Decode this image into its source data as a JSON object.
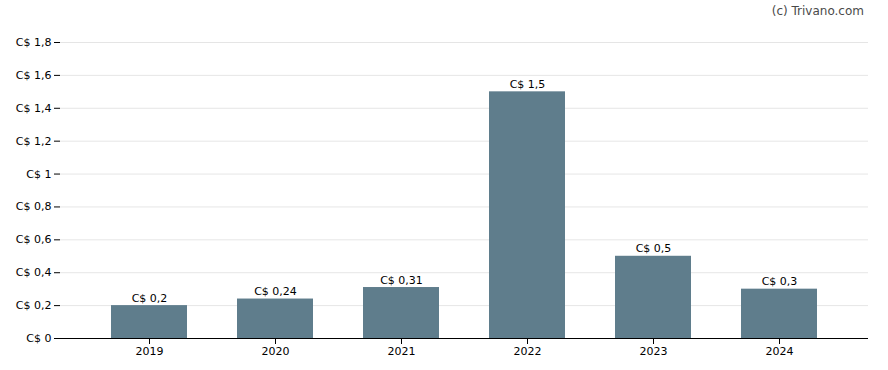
{
  "chart_data": {
    "type": "bar",
    "annotation": "(c) Trivano.com",
    "categories": [
      "2019",
      "2020",
      "2021",
      "2022",
      "2023",
      "2024"
    ],
    "values": [
      0.2,
      0.24,
      0.31,
      1.5,
      0.5,
      0.3
    ],
    "value_labels": [
      "C$ 0,2",
      "C$ 0,24",
      "C$ 0,31",
      "C$ 1,5",
      "C$ 0,5",
      "C$ 0,3"
    ],
    "color": "#5f7d8c",
    "ylim": [
      0,
      1.8
    ],
    "yticks": [
      {
        "value": 0,
        "label": "C$ 0"
      },
      {
        "value": 0.2,
        "label": "C$ 0,2"
      },
      {
        "value": 0.4,
        "label": "C$ 0,4"
      },
      {
        "value": 0.6,
        "label": "C$ 0,6"
      },
      {
        "value": 0.8,
        "label": "C$ 0,8"
      },
      {
        "value": 1.0,
        "label": "C$ 1"
      },
      {
        "value": 1.2,
        "label": "C$ 1,2"
      },
      {
        "value": 1.4,
        "label": "C$ 1,4"
      },
      {
        "value": 1.6,
        "label": "C$ 1,6"
      },
      {
        "value": 1.8,
        "label": "C$ 1,8"
      }
    ],
    "grid": true,
    "data_labels": true
  }
}
